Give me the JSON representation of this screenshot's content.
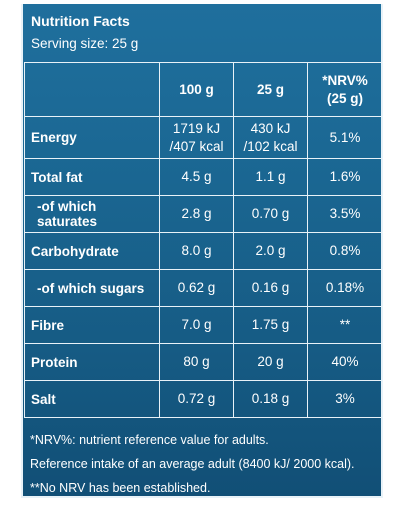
{
  "header": {
    "title": "Nutrition Facts",
    "serving": "Serving size: 25 g"
  },
  "table": {
    "columns": [
      "",
      "100 g",
      "25 g",
      "*NRV%\n(25 g)"
    ],
    "rows": [
      {
        "name": "Energy",
        "per100": "1719 kJ\n/407 kcal",
        "per25": "430 kJ\n/102 kcal",
        "nrv": "5.1%",
        "sub": false
      },
      {
        "name": "Total fat",
        "per100": "4.5 g",
        "per25": "1.1 g",
        "nrv": "1.6%",
        "sub": false
      },
      {
        "name": "-of which saturates",
        "per100": "2.8 g",
        "per25": "0.70 g",
        "nrv": "3.5%",
        "sub": true
      },
      {
        "name": "Carbohydrate",
        "per100": "8.0 g",
        "per25": "2.0 g",
        "nrv": "0.8%",
        "sub": false
      },
      {
        "name": "-of which sugars",
        "per100": "0.62 g",
        "per25": "0.16 g",
        "nrv": "0.18%",
        "sub": true
      },
      {
        "name": "Fibre",
        "per100": "7.0 g",
        "per25": "1.75 g",
        "nrv": "**",
        "sub": false
      },
      {
        "name": "Protein",
        "per100": "80 g",
        "per25": "20 g",
        "nrv": "40%",
        "sub": false
      },
      {
        "name": "Salt",
        "per100": "0.72 g",
        "per25": "0.18 g",
        "nrv": "3%",
        "sub": false
      }
    ]
  },
  "footnotes": [
    "*NRV%: nutrient reference value for adults.",
    "Reference intake of an average adult (8400 kJ/ 2000 kcal).",
    "**No NRV has been established."
  ],
  "colors": {
    "panel_top": "#1f6f9d",
    "panel_bottom": "#114f76",
    "lines": "#e8f2f8",
    "text": "#ffffff"
  }
}
